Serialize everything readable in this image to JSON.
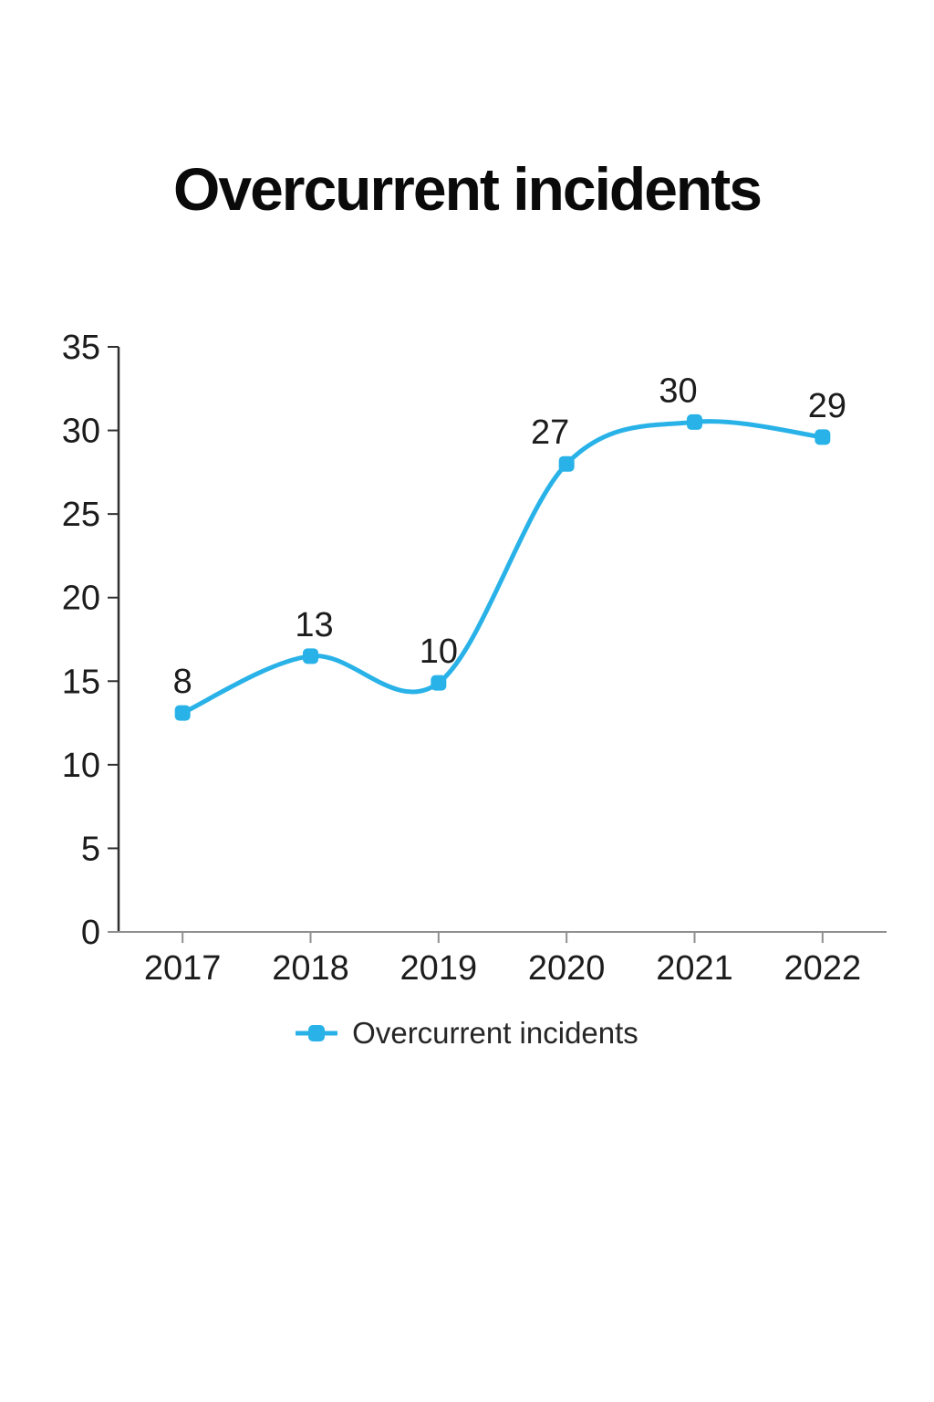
{
  "title": "Overcurrent incidents",
  "legend": {
    "label": "Overcurrent incidents"
  },
  "chart_data": {
    "type": "line",
    "title": "Overcurrent incidents",
    "categories": [
      "2017",
      "2018",
      "2019",
      "2020",
      "2021",
      "2022"
    ],
    "series": [
      {
        "name": "Overcurrent incidents",
        "values": [
          8,
          13,
          10,
          27,
          30,
          29
        ]
      }
    ],
    "point_labels": [
      "8",
      "13",
      "10",
      "27",
      "30",
      "29"
    ],
    "plotted_values_estimate": [
      13.1,
      16.5,
      14.9,
      28.0,
      30.5,
      29.6
    ],
    "y_ticks": [
      0,
      5,
      10,
      15,
      20,
      25,
      30,
      35
    ],
    "ylim": [
      0,
      35
    ],
    "xlabel": "",
    "ylabel": "",
    "grid": false,
    "smooth": true,
    "marker": "rounded-square",
    "legend_position": "bottom",
    "line_color": "#29b2e8",
    "axis_color_y": "#2f2f2f",
    "axis_color_x": "#8f8f8f",
    "label_color": "#1c1c1c"
  }
}
